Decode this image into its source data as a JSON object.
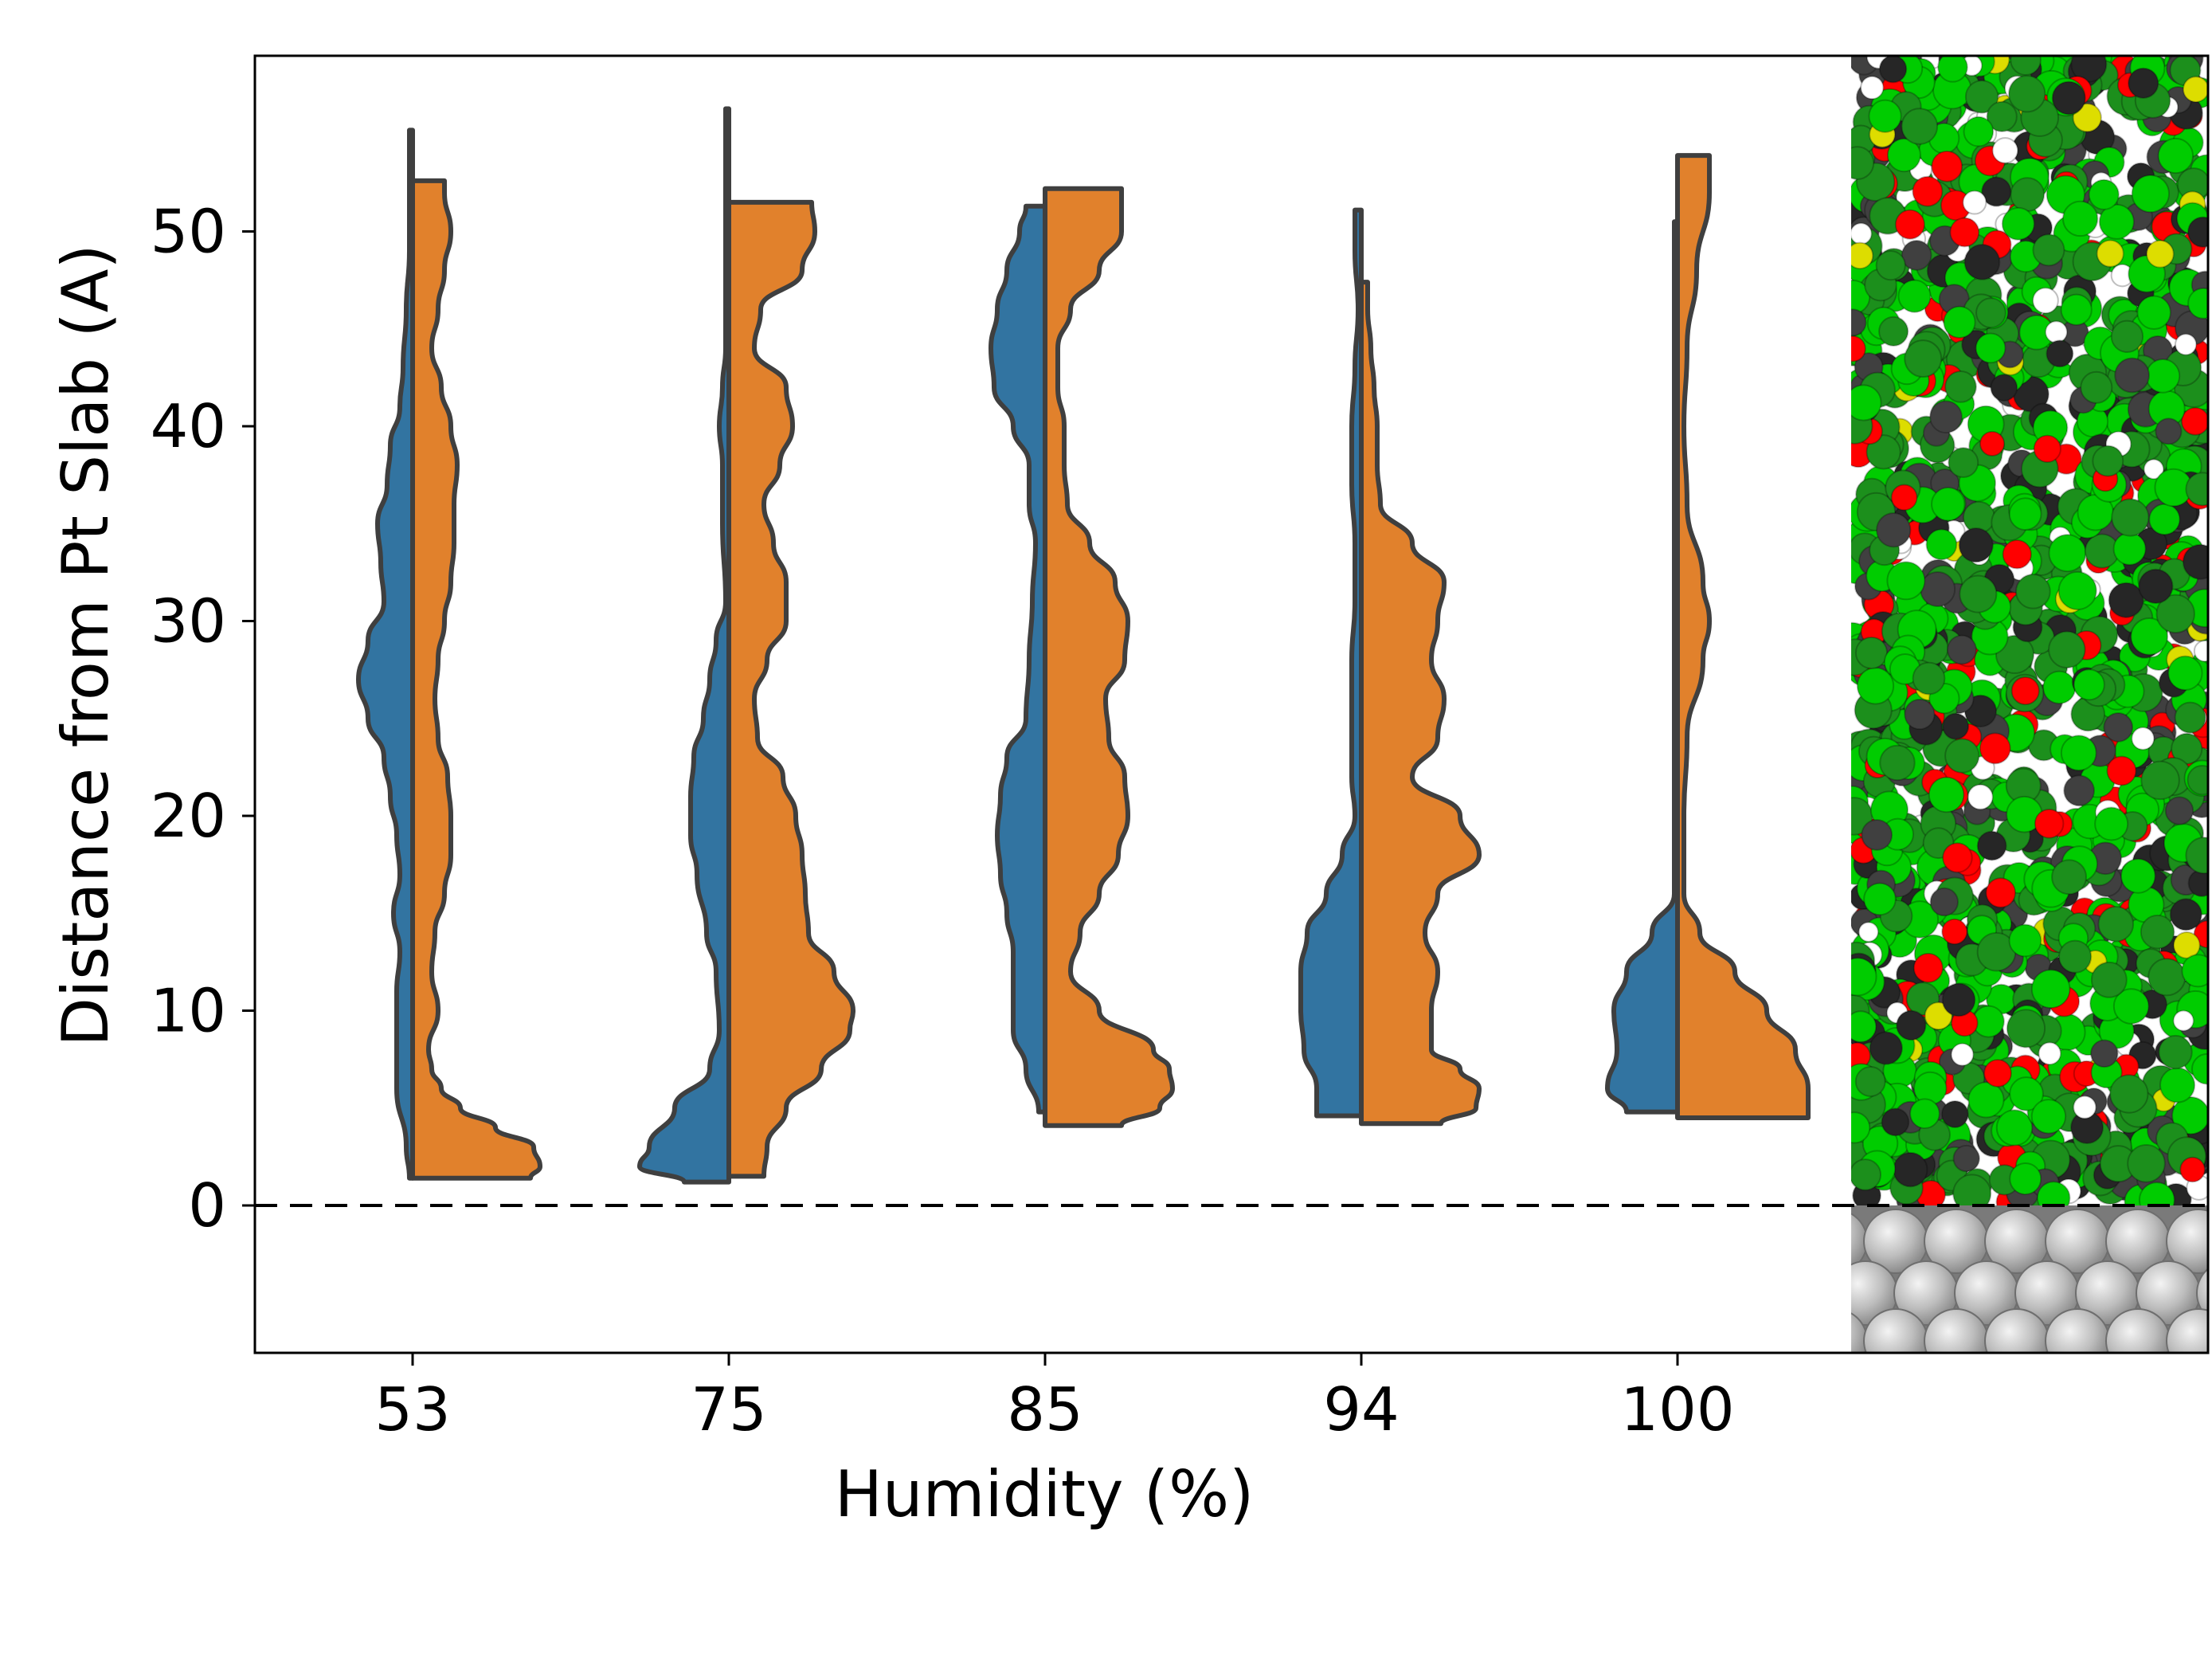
{
  "chart_data": {
    "type": "violin",
    "xlabel": "Humidity (%)",
    "ylabel": "Distance from Pt Slab (A)",
    "categories": [
      "53",
      "75",
      "85",
      "94",
      "100"
    ],
    "ylim": [
      -7.5,
      59
    ],
    "yticks": [
      "0",
      "10",
      "20",
      "30",
      "40",
      "50"
    ],
    "reference_line": {
      "y": 0,
      "style": "dashed"
    },
    "split": true,
    "series": [
      {
        "side": "left",
        "color": "#3274a1",
        "profiles": [
          {
            "range": [
              1.4,
              55.2
            ],
            "profile": [
              [
                1.4,
                0.01
              ],
              [
                3,
                0.02
              ],
              [
                6,
                0.05
              ],
              [
                9,
                0.05
              ],
              [
                11,
                0.05
              ],
              [
                13,
                0.04
              ],
              [
                15,
                0.06
              ],
              [
                17,
                0.04
              ],
              [
                19,
                0.05
              ],
              [
                21,
                0.07
              ],
              [
                23,
                0.09
              ],
              [
                25,
                0.14
              ],
              [
                27,
                0.17
              ],
              [
                29,
                0.14
              ],
              [
                31,
                0.09
              ],
              [
                33,
                0.1
              ],
              [
                35,
                0.11
              ],
              [
                37,
                0.08
              ],
              [
                39,
                0.07
              ],
              [
                41,
                0.04
              ],
              [
                43,
                0.03
              ],
              [
                46,
                0.02
              ],
              [
                49,
                0.01
              ],
              [
                52,
                0.01
              ],
              [
                55.2,
                0.01
              ]
            ]
          },
          {
            "range": [
              1.2,
              56.3
            ],
            "profile": [
              [
                1.2,
                0.14
              ],
              [
                2,
                0.28
              ],
              [
                3,
                0.25
              ],
              [
                5,
                0.17
              ],
              [
                7,
                0.06
              ],
              [
                9,
                0.03
              ],
              [
                12,
                0.04
              ],
              [
                14,
                0.07
              ],
              [
                17,
                0.1
              ],
              [
                19,
                0.12
              ],
              [
                21,
                0.12
              ],
              [
                23,
                0.11
              ],
              [
                25,
                0.08
              ],
              [
                27,
                0.06
              ],
              [
                29,
                0.04
              ],
              [
                31,
                0.01
              ],
              [
                35,
                0.02
              ],
              [
                38,
                0.02
              ],
              [
                40,
                0.03
              ],
              [
                42,
                0.02
              ],
              [
                44,
                0.01
              ],
              [
                48,
                0.01
              ],
              [
                52,
                0.01
              ],
              [
                56.3,
                0.01
              ]
            ]
          },
          {
            "range": [
              4.8,
              51.3
            ],
            "profile": [
              [
                4.8,
                0.02
              ],
              [
                7,
                0.06
              ],
              [
                9,
                0.1
              ],
              [
                11,
                0.1
              ],
              [
                13,
                0.1
              ],
              [
                15,
                0.12
              ],
              [
                17,
                0.14
              ],
              [
                19,
                0.15
              ],
              [
                21,
                0.14
              ],
              [
                23,
                0.12
              ],
              [
                25,
                0.06
              ],
              [
                28,
                0.05
              ],
              [
                31,
                0.04
              ],
              [
                34,
                0.03
              ],
              [
                36,
                0.05
              ],
              [
                38,
                0.05
              ],
              [
                40,
                0.1
              ],
              [
                42,
                0.16
              ],
              [
                44,
                0.17
              ],
              [
                46,
                0.15
              ],
              [
                48,
                0.12
              ],
              [
                50,
                0.08
              ],
              [
                51.3,
                0.06
              ]
            ]
          },
          {
            "range": [
              4.6,
              51.1
            ],
            "profile": [
              [
                4.6,
                0.14
              ],
              [
                6,
                0.14
              ],
              [
                8,
                0.18
              ],
              [
                10,
                0.19
              ],
              [
                12,
                0.19
              ],
              [
                14,
                0.17
              ],
              [
                16,
                0.11
              ],
              [
                18,
                0.06
              ],
              [
                20,
                0.02
              ],
              [
                22,
                0.03
              ],
              [
                25,
                0.03
              ],
              [
                28,
                0.03
              ],
              [
                31,
                0.02
              ],
              [
                34,
                0.02
              ],
              [
                37,
                0.03
              ],
              [
                40,
                0.03
              ],
              [
                43,
                0.02
              ],
              [
                46,
                0.01
              ],
              [
                49,
                0.02
              ],
              [
                51.1,
                0.02
              ]
            ]
          },
          {
            "range": [
              4.8,
              50.5
            ],
            "profile": [
              [
                4.8,
                0.16
              ],
              [
                6,
                0.22
              ],
              [
                8,
                0.19
              ],
              [
                10,
                0.2
              ],
              [
                12,
                0.16
              ],
              [
                14,
                0.08
              ],
              [
                16,
                0.01
              ],
              [
                18,
                0.01
              ],
              [
                22,
                0.01
              ],
              [
                26,
                0.01
              ],
              [
                30,
                0.01
              ],
              [
                34,
                0.01
              ],
              [
                38,
                0.01
              ],
              [
                42,
                0.01
              ],
              [
                46,
                0.01
              ],
              [
                50.5,
                0.01
              ]
            ]
          }
        ]
      },
      {
        "side": "right",
        "color": "#e1812c",
        "profiles": [
          {
            "range": [
              1.4,
              52.6
            ],
            "profile": [
              [
                1.4,
                0.37
              ],
              [
                2,
                0.4
              ],
              [
                3,
                0.38
              ],
              [
                4,
                0.26
              ],
              [
                5,
                0.15
              ],
              [
                6,
                0.09
              ],
              [
                7,
                0.06
              ],
              [
                8,
                0.05
              ],
              [
                10,
                0.08
              ],
              [
                12,
                0.06
              ],
              [
                14,
                0.07
              ],
              [
                16,
                0.1
              ],
              [
                18,
                0.12
              ],
              [
                20,
                0.12
              ],
              [
                22,
                0.11
              ],
              [
                24,
                0.08
              ],
              [
                26,
                0.07
              ],
              [
                28,
                0.08
              ],
              [
                30,
                0.1
              ],
              [
                32,
                0.12
              ],
              [
                34,
                0.13
              ],
              [
                36,
                0.13
              ],
              [
                38,
                0.14
              ],
              [
                40,
                0.12
              ],
              [
                42,
                0.09
              ],
              [
                44,
                0.06
              ],
              [
                46,
                0.08
              ],
              [
                48,
                0.1
              ],
              [
                50,
                0.12
              ],
              [
                52,
                0.1
              ],
              [
                52.6,
                0.1
              ]
            ]
          },
          {
            "range": [
              1.5,
              51.5
            ],
            "profile": [
              [
                1.5,
                0.11
              ],
              [
                3,
                0.12
              ],
              [
                5,
                0.18
              ],
              [
                7,
                0.29
              ],
              [
                9,
                0.38
              ],
              [
                10,
                0.39
              ],
              [
                12,
                0.33
              ],
              [
                14,
                0.25
              ],
              [
                16,
                0.24
              ],
              [
                18,
                0.23
              ],
              [
                20,
                0.21
              ],
              [
                22,
                0.17
              ],
              [
                24,
                0.09
              ],
              [
                26,
                0.08
              ],
              [
                28,
                0.12
              ],
              [
                30,
                0.18
              ],
              [
                32,
                0.18
              ],
              [
                34,
                0.14
              ],
              [
                36,
                0.11
              ],
              [
                38,
                0.16
              ],
              [
                40,
                0.2
              ],
              [
                42,
                0.18
              ],
              [
                44,
                0.08
              ],
              [
                46,
                0.1
              ],
              [
                48,
                0.23
              ],
              [
                50,
                0.27
              ],
              [
                51.5,
                0.26
              ]
            ]
          },
          {
            "range": [
              4.1,
              52.2
            ],
            "profile": [
              [
                4.1,
                0.24
              ],
              [
                5,
                0.36
              ],
              [
                6,
                0.4
              ],
              [
                7,
                0.39
              ],
              [
                8,
                0.34
              ],
              [
                10,
                0.17
              ],
              [
                12,
                0.08
              ],
              [
                14,
                0.11
              ],
              [
                16,
                0.17
              ],
              [
                18,
                0.23
              ],
              [
                20,
                0.26
              ],
              [
                22,
                0.25
              ],
              [
                24,
                0.2
              ],
              [
                26,
                0.19
              ],
              [
                28,
                0.25
              ],
              [
                30,
                0.26
              ],
              [
                32,
                0.22
              ],
              [
                34,
                0.14
              ],
              [
                36,
                0.07
              ],
              [
                38,
                0.06
              ],
              [
                40,
                0.06
              ],
              [
                42,
                0.04
              ],
              [
                44,
                0.04
              ],
              [
                46,
                0.08
              ],
              [
                48,
                0.17
              ],
              [
                50,
                0.24
              ],
              [
                52.2,
                0.24
              ]
            ]
          },
          {
            "range": [
              4.2,
              47.4
            ],
            "profile": [
              [
                4.2,
                0.25
              ],
              [
                5,
                0.36
              ],
              [
                6,
                0.37
              ],
              [
                7,
                0.31
              ],
              [
                8,
                0.22
              ],
              [
                10,
                0.22
              ],
              [
                12,
                0.24
              ],
              [
                14,
                0.2
              ],
              [
                16,
                0.24
              ],
              [
                18,
                0.37
              ],
              [
                20,
                0.31
              ],
              [
                22,
                0.16
              ],
              [
                24,
                0.24
              ],
              [
                26,
                0.26
              ],
              [
                28,
                0.22
              ],
              [
                30,
                0.24
              ],
              [
                32,
                0.26
              ],
              [
                34,
                0.16
              ],
              [
                36,
                0.06
              ],
              [
                38,
                0.05
              ],
              [
                40,
                0.05
              ],
              [
                42,
                0.04
              ],
              [
                44,
                0.03
              ],
              [
                46,
                0.02
              ],
              [
                47.4,
                0.02
              ]
            ]
          },
          {
            "range": [
              4.5,
              53.9
            ],
            "profile": [
              [
                4.5,
                0.41
              ],
              [
                6,
                0.41
              ],
              [
                8,
                0.37
              ],
              [
                10,
                0.28
              ],
              [
                12,
                0.18
              ],
              [
                14,
                0.07
              ],
              [
                16,
                0.02
              ],
              [
                18,
                0.02
              ],
              [
                20,
                0.02
              ],
              [
                24,
                0.03
              ],
              [
                28,
                0.08
              ],
              [
                30,
                0.1
              ],
              [
                32,
                0.08
              ],
              [
                36,
                0.03
              ],
              [
                40,
                0.02
              ],
              [
                44,
                0.03
              ],
              [
                48,
                0.06
              ],
              [
                52,
                0.1
              ],
              [
                53.9,
                0.1
              ]
            ]
          }
        ]
      }
    ],
    "inset_image": {
      "description_ref": "molecular-snapshot",
      "atom_colors": [
        "#00cc00",
        "#404040",
        "#ff0000",
        "#ffffff",
        "#dddd00",
        "#c0c0c0"
      ]
    }
  }
}
